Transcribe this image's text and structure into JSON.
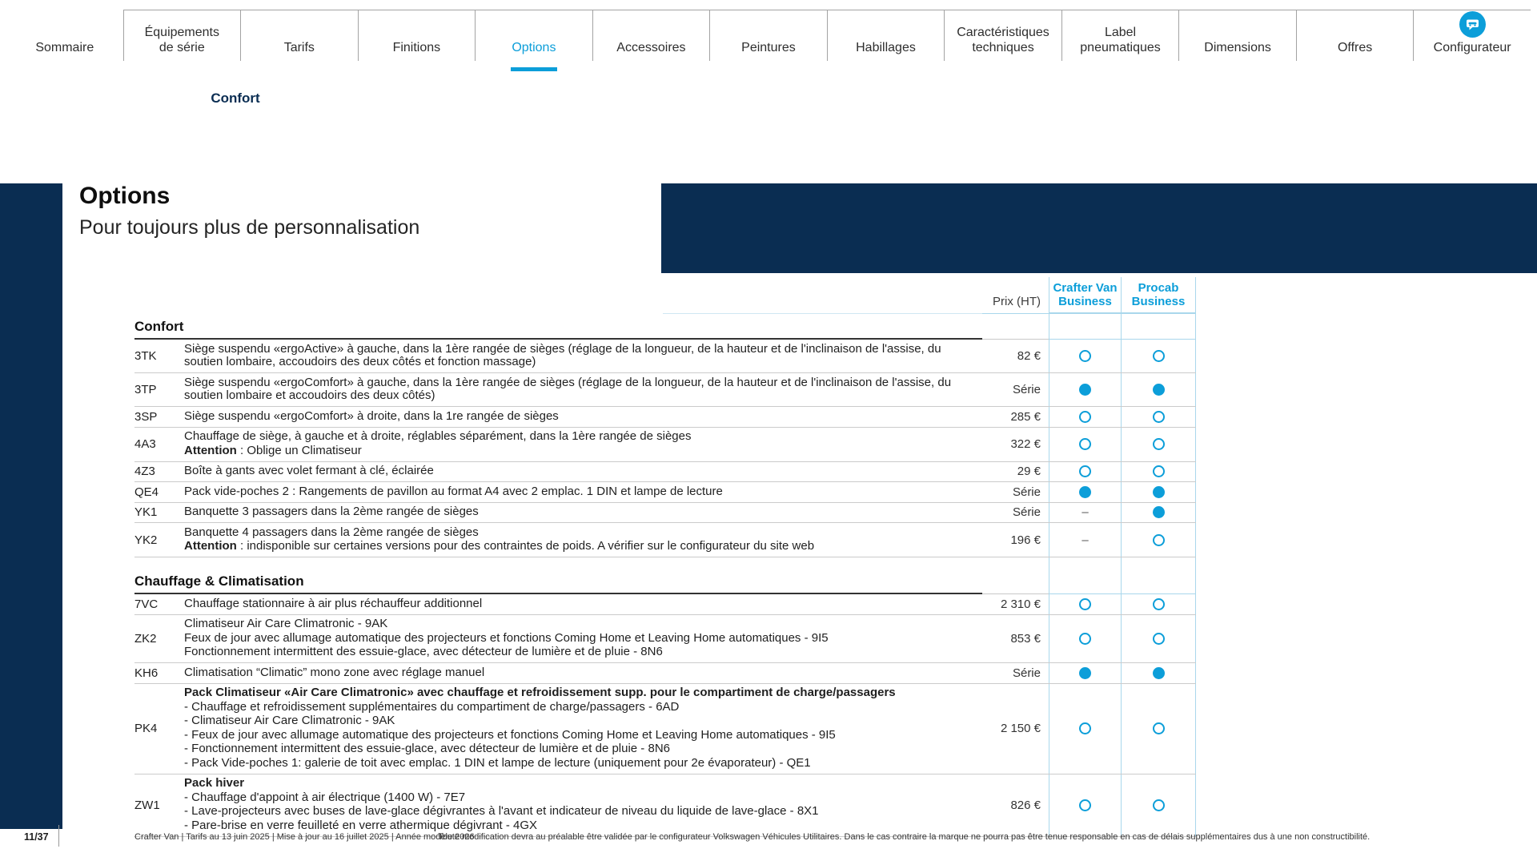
{
  "colors": {
    "accent": "#0c9ed9",
    "navy": "#0a2d52",
    "line_blue": "#a9d7ec"
  },
  "nav": {
    "tabs": [
      {
        "label": "Sommaire"
      },
      {
        "label": "Équipements\nde série"
      },
      {
        "label": "Tarifs"
      },
      {
        "label": "Finitions"
      },
      {
        "label": "Options",
        "active": true
      },
      {
        "label": "Accessoires"
      },
      {
        "label": "Peintures"
      },
      {
        "label": "Habillages"
      },
      {
        "label": "Caractéristiques\ntechniques"
      },
      {
        "label": "Label\npneumatiques"
      },
      {
        "label": "Dimensions"
      },
      {
        "label": "Offres"
      },
      {
        "label": "Configurateur",
        "icon": "configurator"
      }
    ],
    "subnav": "Confort"
  },
  "page_header": {
    "title": "Options",
    "subtitle": "Pour toujours plus de personnalisation"
  },
  "table": {
    "headers": {
      "price": "Prix (HT)",
      "col1": "Crafter Van\nBusiness",
      "col2": "Procab\nBusiness"
    },
    "sections": [
      {
        "title": "Confort",
        "rows": [
          {
            "code": "3TK",
            "lines": [
              {
                "text": "Siège suspendu «ergoActive» à gauche, dans la 1ère rangée de sièges (réglage de la longueur, de la hauteur et de l'inclinaison de l'assise, du soutien lombaire, accoudoirs des deux côtés et fonction massage)"
              }
            ],
            "price": "82 €",
            "marks": [
              "option",
              "option"
            ]
          },
          {
            "code": "3TP",
            "lines": [
              {
                "text": "Siège suspendu «ergoComfort» à gauche, dans la 1ère rangée de sièges (réglage de la longueur, de la hauteur et de l'inclinaison de l'assise, du soutien lombaire et accoudoirs des deux côtés)"
              }
            ],
            "price": "Série",
            "marks": [
              "serie",
              "serie"
            ]
          },
          {
            "code": "3SP",
            "lines": [
              {
                "text": "Siège suspendu «ergoComfort» à droite, dans la 1re rangée de sièges"
              }
            ],
            "price": "285 €",
            "marks": [
              "option",
              "option"
            ]
          },
          {
            "code": "4A3",
            "lines": [
              {
                "text": "Chauffage de siège, à gauche et à droite, réglables séparément, dans la 1ère rangée de sièges"
              },
              {
                "label": "Attention",
                "text": " : Oblige un Climatiseur"
              }
            ],
            "price": "322 €",
            "marks": [
              "option",
              "option"
            ]
          },
          {
            "code": "4Z3",
            "lines": [
              {
                "text": "Boîte à gants avec volet fermant à clé, éclairée"
              }
            ],
            "price": "29 €",
            "marks": [
              "option",
              "option"
            ]
          },
          {
            "code": "QE4",
            "lines": [
              {
                "text": "Pack vide-poches 2 : Rangements de pavillon au format A4 avec 2 emplac. 1 DIN et lampe de lecture"
              }
            ],
            "price": "Série",
            "marks": [
              "serie",
              "serie"
            ]
          },
          {
            "code": "YK1",
            "lines": [
              {
                "text": "Banquette 3 passagers dans la 2ème rangée de sièges"
              }
            ],
            "price": "Série",
            "marks": [
              "dash",
              "serie"
            ]
          },
          {
            "code": "YK2",
            "lines": [
              {
                "text": "Banquette 4 passagers dans la 2ème rangée de sièges"
              },
              {
                "label": "Attention",
                "text": " : indisponible sur certaines versions pour des contraintes de poids. A vérifier sur le configurateur du site web"
              }
            ],
            "price": "196 €",
            "marks": [
              "dash",
              "option"
            ]
          }
        ]
      },
      {
        "title": "Chauffage & Climatisation",
        "rows": [
          {
            "code": "7VC",
            "lines": [
              {
                "text": "Chauffage stationnaire à air plus réchauffeur additionnel"
              }
            ],
            "price": "2 310 €",
            "marks": [
              "option",
              "option"
            ]
          },
          {
            "code": "ZK2",
            "lines": [
              {
                "text": "Climatiseur Air Care Climatronic - 9AK"
              },
              {
                "text": "Feux de jour avec allumage automatique des projecteurs et fonctions Coming Home et Leaving Home automatiques - 9I5"
              },
              {
                "text": "Fonctionnement intermittent des essuie-glace, avec détecteur de lumière et de pluie - 8N6"
              }
            ],
            "price": "853 €",
            "marks": [
              "option",
              "option"
            ]
          },
          {
            "code": "KH6",
            "lines": [
              {
                "text": "Climatisation “Climatic” mono zone avec réglage manuel"
              }
            ],
            "price": "Série",
            "marks": [
              "serie",
              "serie"
            ]
          },
          {
            "code": "PK4",
            "lines": [
              {
                "text": "Pack Climatiseur «Air Care Climatronic» avec chauffage et refroidissement supp. pour le compartiment de charge/passagers",
                "strong": true
              },
              {
                "text": "- Chauffage et refroidissement supplémentaires du compartiment de charge/passagers - 6AD"
              },
              {
                "text": "- Climatiseur Air Care Climatronic - 9AK"
              },
              {
                "text": "- Feux de jour avec allumage automatique des projecteurs et fonctions Coming Home et Leaving Home automatiques - 9I5"
              },
              {
                "text": "- Fonctionnement intermittent des essuie-glace, avec détecteur de lumière et de pluie - 8N6"
              },
              {
                "text": "- Pack Vide-poches 1: galerie de toit avec emplac. 1 DIN et lampe de lecture (uniquement pour 2e évaporateur) - QE1"
              }
            ],
            "price": "2 150 €",
            "marks": [
              "option",
              "option"
            ]
          },
          {
            "code": "ZW1",
            "lines": [
              {
                "text": "Pack hiver",
                "strong": true
              },
              {
                "text": "- Chauffage d'appoint à air électrique (1400 W) - 7E7"
              },
              {
                "text": "- Lave-projecteurs avec buses de lave-glace dégivrantes à l'avant et indicateur de niveau du liquide de lave-glace - 8X1"
              },
              {
                "text": "- Pare-brise en verre feuilleté en verre athermique dégivrant - 4GX"
              }
            ],
            "price": "826 €",
            "marks": [
              "option",
              "option"
            ]
          }
        ]
      }
    ]
  },
  "footer": {
    "page": "11/37",
    "info": "Crafter Van | Tarifs au 13 juin 2025 | Mise à jour au 16 juillet 2025 | Année modèle 2026",
    "disclaimer": "Toute modification devra au préalable être validée par le configurateur Volkswagen Véhicules Utilitaires. Dans le cas contraire la marque ne pourra pas être tenue responsable en cas de délais supplémentaires dus à une non constructibilité."
  }
}
